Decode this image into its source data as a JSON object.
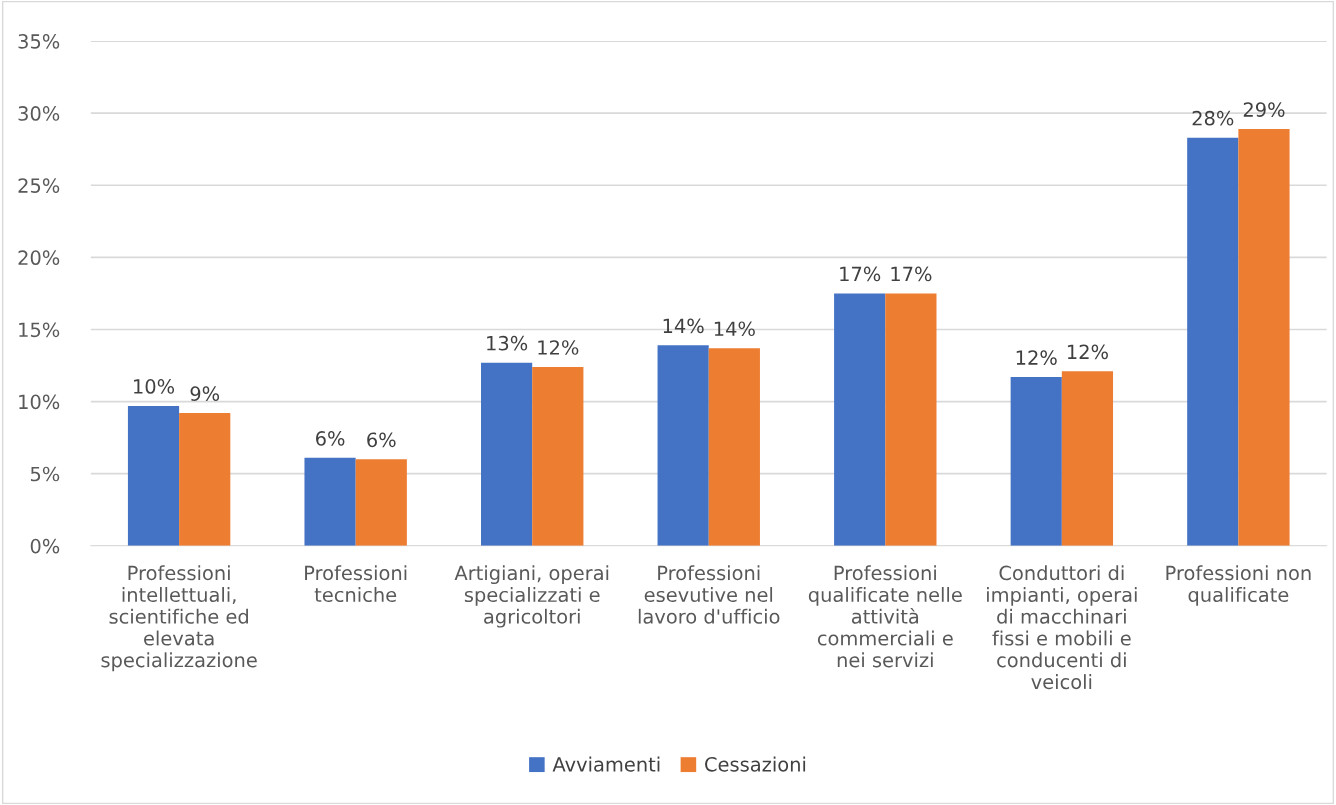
{
  "chart_data": {
    "type": "bar",
    "categories": [
      "Professioni\nintellettuali,\nscientifiche ed\nelevata\nspecializzazione",
      "Professioni\ntecniche",
      "Artigiani, operai\nspecializzati e\nagricoltori",
      "Professioni\nesevutive nel\nlavoro d'ufficio",
      "Professioni\nqualificate nelle\nattività\ncommerciali e\nnei servizi",
      "Conduttori di\nimpianti, operai\ndi macchinari\nfissi e mobili e\nconducenti di\nveicoli",
      "Professioni non\nqualificate"
    ],
    "series": [
      {
        "name": "Avviamenti",
        "color": "#4472c4",
        "values": [
          9.7,
          6.1,
          12.7,
          13.9,
          17.5,
          11.7,
          28.3
        ],
        "value_labels": [
          "10%",
          "6%",
          "13%",
          "14%",
          "17%",
          "12%",
          "28%"
        ]
      },
      {
        "name": "Cessazioni",
        "color": "#ed7d31",
        "values": [
          9.2,
          6.0,
          12.4,
          13.7,
          17.5,
          12.1,
          28.9
        ],
        "value_labels": [
          "9%",
          "6%",
          "12%",
          "14%",
          "17%",
          "12%",
          "29%"
        ]
      }
    ],
    "ylim": [
      0,
      35
    ],
    "yticks": [
      {
        "value": 0,
        "label": "0%"
      },
      {
        "value": 5,
        "label": "5%"
      },
      {
        "value": 10,
        "label": "10%"
      },
      {
        "value": 15,
        "label": "15%"
      },
      {
        "value": 20,
        "label": "20%"
      },
      {
        "value": 25,
        "label": "25%"
      },
      {
        "value": 30,
        "label": "30%"
      },
      {
        "value": 35,
        "label": "35%"
      }
    ],
    "grid": "y",
    "legend": "bottom"
  }
}
